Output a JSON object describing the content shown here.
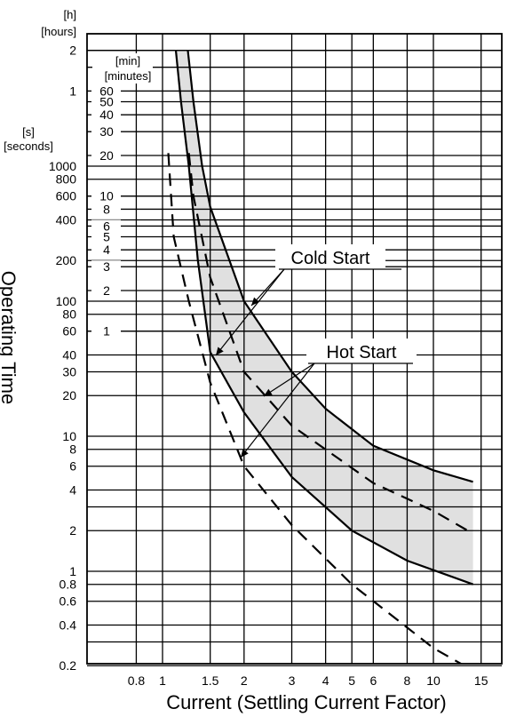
{
  "chart_data": {
    "type": "line",
    "xlabel": "Current (Settling Current Factor)",
    "ylabel": "Operating Time",
    "x_scale": "log",
    "y_scale": "log",
    "x_ticks": [
      {
        "v": 0.8,
        "label": "0.8"
      },
      {
        "v": 1,
        "label": "1"
      },
      {
        "v": 1.5,
        "label": "1.5"
      },
      {
        "v": 2,
        "label": "2"
      },
      {
        "v": 3,
        "label": "3"
      },
      {
        "v": 4,
        "label": "4"
      },
      {
        "v": 5,
        "label": "5"
      },
      {
        "v": 6,
        "label": "6"
      },
      {
        "v": 8,
        "label": "8"
      },
      {
        "v": 10,
        "label": "10"
      },
      {
        "v": 15,
        "label": "15"
      }
    ],
    "y_ticks_seconds": [
      {
        "v": 0.2,
        "label": "0.2"
      },
      {
        "v": 0.4,
        "label": "0.4"
      },
      {
        "v": 0.6,
        "label": "0.6"
      },
      {
        "v": 0.8,
        "label": "0.8"
      },
      {
        "v": 1,
        "label": "1"
      },
      {
        "v": 2,
        "label": "2"
      },
      {
        "v": 4,
        "label": "4"
      },
      {
        "v": 6,
        "label": "6"
      },
      {
        "v": 8,
        "label": "8"
      },
      {
        "v": 10,
        "label": "10"
      },
      {
        "v": 20,
        "label": "20"
      },
      {
        "v": 30,
        "label": "30"
      },
      {
        "v": 40,
        "label": "40"
      },
      {
        "v": 60,
        "label": "60"
      },
      {
        "v": 80,
        "label": "80"
      },
      {
        "v": 100,
        "label": "100"
      },
      {
        "v": 200,
        "label": "200"
      },
      {
        "v": 400,
        "label": "400"
      },
      {
        "v": 600,
        "label": "600"
      },
      {
        "v": 800,
        "label": "800"
      },
      {
        "v": 1000,
        "label": "1000"
      }
    ],
    "y_ticks_minutes": [
      {
        "v": 1,
        "label": "1"
      },
      {
        "v": 2,
        "label": "2"
      },
      {
        "v": 3,
        "label": "3"
      },
      {
        "v": 4,
        "label": "4"
      },
      {
        "v": 5,
        "label": "5"
      },
      {
        "v": 6,
        "label": "6"
      },
      {
        "v": 8,
        "label": "8"
      },
      {
        "v": 10,
        "label": "10"
      },
      {
        "v": 20,
        "label": "20"
      },
      {
        "v": 30,
        "label": "30"
      },
      {
        "v": 40,
        "label": "40"
      },
      {
        "v": 50,
        "label": "50"
      },
      {
        "v": 60,
        "label": "60"
      }
    ],
    "y_ticks_hours": [
      {
        "v": 1,
        "label": "1"
      },
      {
        "v": 2,
        "label": "2"
      }
    ],
    "unit_labels": {
      "hours": [
        "[h]",
        "[hours]"
      ],
      "minutes": [
        "[min]",
        "[minutes]"
      ],
      "seconds": [
        "[s]",
        "[seconds]"
      ]
    },
    "series": [
      {
        "name": "Cold Start",
        "style": "solid",
        "upper": [
          [
            1.24,
            7200
          ],
          [
            1.3,
            3000
          ],
          [
            1.4,
            1000
          ],
          [
            1.5,
            500
          ],
          [
            2,
            100
          ],
          [
            3,
            30
          ],
          [
            4,
            16
          ],
          [
            6,
            8.5
          ],
          [
            10,
            5.6
          ],
          [
            14,
            4.6
          ]
        ],
        "lower": [
          [
            1.12,
            7200
          ],
          [
            1.17,
            3000
          ],
          [
            1.25,
            1000
          ],
          [
            1.35,
            200
          ],
          [
            1.5,
            42
          ],
          [
            2,
            15
          ],
          [
            3,
            5
          ],
          [
            5,
            2
          ],
          [
            8,
            1.2
          ],
          [
            14,
            0.8
          ]
        ]
      },
      {
        "name": "Hot Start",
        "style": "dashed",
        "upper": [
          [
            1.25,
            1250
          ],
          [
            1.3,
            600
          ],
          [
            1.5,
            150
          ],
          [
            2,
            30
          ],
          [
            3,
            12
          ],
          [
            6,
            4.5
          ],
          [
            10,
            2.8
          ],
          [
            14,
            1.9
          ]
        ],
        "lower": [
          [
            1.05,
            1250
          ],
          [
            1.1,
            300
          ],
          [
            1.25,
            100
          ],
          [
            1.5,
            25
          ],
          [
            2,
            6
          ],
          [
            3,
            2.2
          ],
          [
            5,
            0.8
          ],
          [
            10,
            0.27
          ],
          [
            13,
            0.2
          ]
        ]
      }
    ],
    "annotations": [
      {
        "text": "Cold Start"
      },
      {
        "text": "Hot Start"
      }
    ],
    "shading": "between Cold Start upper and lower curves",
    "colors": {
      "band": "#e0e0e0",
      "line": "#000000"
    },
    "grid": true
  }
}
